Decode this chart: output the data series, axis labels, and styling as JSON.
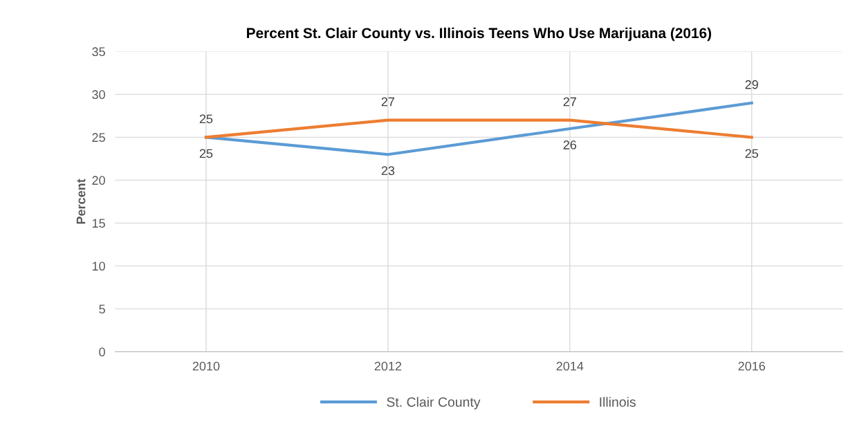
{
  "chart_data": {
    "type": "line",
    "title": "Percent St. Clair County vs. Illinois Teens Who Use Marijuana (2016)",
    "ylabel": "Percent",
    "categories": [
      "2010",
      "2012",
      "2014",
      "2016"
    ],
    "series": [
      {
        "name": "St. Clair County",
        "color": "#5b9bd5",
        "values": [
          25,
          23,
          26,
          29
        ]
      },
      {
        "name": "Illinois",
        "color": "#ed7d31",
        "values": [
          25,
          27,
          27,
          25
        ]
      }
    ],
    "ylim": [
      0,
      35
    ],
    "yticks": [
      0,
      5,
      10,
      15,
      20,
      25,
      30,
      35
    ],
    "grid": true,
    "legend": "bottom",
    "data_labels": true,
    "marker": "none",
    "line_style": "solid"
  }
}
